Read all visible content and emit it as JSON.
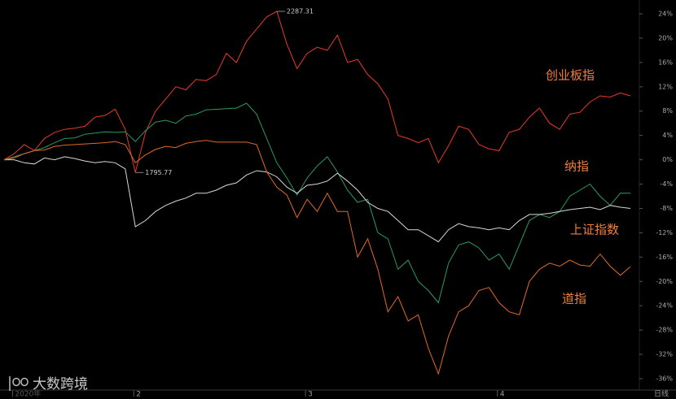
{
  "chart_data": {
    "type": "line",
    "x": [
      0,
      1,
      2,
      3,
      4,
      5,
      6,
      7,
      8,
      9,
      10,
      11,
      12,
      13,
      14,
      15,
      16,
      17,
      18,
      19,
      20,
      21,
      22,
      23,
      24,
      25,
      26,
      27,
      28,
      29,
      30,
      31,
      32,
      33,
      34,
      35,
      36,
      37,
      38,
      39,
      40,
      41,
      42,
      43,
      44,
      45,
      46,
      47,
      48,
      49,
      50,
      51,
      52,
      53,
      54,
      55,
      56,
      57,
      58,
      59,
      60,
      61,
      62
    ],
    "xlim": [
      0,
      62
    ],
    "xticks": [
      {
        "value": 1,
        "label": "2020年"
      },
      {
        "value": 13,
        "label": "2"
      },
      {
        "value": 30,
        "label": "3"
      },
      {
        "value": 49,
        "label": "4"
      }
    ],
    "period_label": "日线",
    "ylim": [
      -36,
      24
    ],
    "yticks": [
      {
        "value": 24,
        "label": "24%"
      },
      {
        "value": 20,
        "label": "20%"
      },
      {
        "value": 16,
        "label": "16%"
      },
      {
        "value": 12,
        "label": "12%"
      },
      {
        "value": 8,
        "label": "8%"
      },
      {
        "value": 4,
        "label": "4%"
      },
      {
        "value": 0,
        "label": "0%"
      },
      {
        "value": -4,
        "label": "-4%"
      },
      {
        "value": -8,
        "label": "-8%"
      },
      {
        "value": -12,
        "label": "-12%"
      },
      {
        "value": -16,
        "label": "-16%"
      },
      {
        "value": -20,
        "label": "-20%"
      },
      {
        "value": -24,
        "label": "-24%"
      },
      {
        "value": -28,
        "label": "-28%"
      },
      {
        "value": -32,
        "label": "-32%"
      },
      {
        "value": -36,
        "label": "-36%"
      }
    ],
    "grid": false,
    "series": [
      {
        "name": "创业板指",
        "color": "#e8392c",
        "values": [
          0,
          1,
          2.5,
          1.5,
          3.5,
          4.5,
          5,
          5.2,
          5.5,
          7,
          7.3,
          8.3,
          5,
          -2.1,
          4.5,
          8,
          10,
          12,
          11.5,
          13.2,
          13,
          14,
          17.5,
          16,
          19.5,
          21.5,
          23.5,
          24.4,
          19,
          15,
          17.5,
          18.5,
          18,
          20.5,
          16,
          16.5,
          14,
          12.5,
          10,
          4,
          3.5,
          2.8,
          3.5,
          -0.5,
          2.3,
          5.5,
          5,
          2.5,
          1.8,
          1.5,
          4.5,
          5,
          7,
          8.5,
          6,
          5,
          7.5,
          7.8,
          9.5,
          10.5,
          10.3,
          11,
          10.5
        ]
      },
      {
        "name": "纳指",
        "color": "#2a9a5c",
        "values": [
          0,
          0.5,
          1,
          1.5,
          2,
          2.8,
          3.5,
          3.6,
          4.2,
          4.4,
          4.6,
          4.5,
          4.6,
          3,
          4.8,
          6.2,
          6.5,
          6,
          7.2,
          7.5,
          8.2,
          8.3,
          8.4,
          8.5,
          9.3,
          7.5,
          3.5,
          -0.5,
          -3,
          -5.8,
          -3,
          -1,
          0.5,
          -2,
          -5,
          -7,
          -6.5,
          -12,
          -13,
          -18,
          -16.5,
          -20,
          -21.5,
          -23.5,
          -17,
          -14,
          -13.5,
          -14.5,
          -16.5,
          -15.5,
          -18,
          -14,
          -10,
          -9,
          -9.5,
          -8.5,
          -6,
          -5,
          -4,
          -6,
          -7.5,
          -5.5,
          -5.5
        ]
      },
      {
        "name": "上证指数",
        "color": "#d8d8d8",
        "values": [
          0,
          0,
          -0.5,
          -0.7,
          0.3,
          0,
          0.5,
          0.2,
          -0.2,
          -0.5,
          -0.3,
          -0.5,
          -1.5,
          -11,
          -10,
          -8.5,
          -7.5,
          -6.8,
          -6.3,
          -5.5,
          -5.5,
          -5,
          -4.2,
          -3.8,
          -2.5,
          -1.8,
          -2,
          -2.8,
          -4.5,
          -5.5,
          -4.2,
          -4,
          -3.5,
          -2.2,
          -3.5,
          -5,
          -7,
          -8,
          -8.5,
          -10,
          -11.5,
          -11.5,
          -12.5,
          -13.5,
          -11.5,
          -10.5,
          -11,
          -11.2,
          -11.5,
          -11.2,
          -11.5,
          -10,
          -9,
          -9,
          -8.8,
          -8.5,
          -8.2,
          -8,
          -7.8,
          -8.2,
          -7.5,
          -7.8,
          -8
        ]
      },
      {
        "name": "道指",
        "color": "#e06a26",
        "values": [
          0,
          0.3,
          1,
          1.5,
          1.6,
          2.2,
          2.4,
          2.5,
          2.6,
          2.7,
          2.8,
          3,
          2.5,
          -0.5,
          0.8,
          1.7,
          2.2,
          2,
          2.7,
          3,
          3.2,
          2.9,
          2.9,
          2.9,
          2.9,
          2.5,
          -2,
          -4.5,
          -5.8,
          -9.5,
          -6.5,
          -8.5,
          -5.5,
          -8.5,
          -8.5,
          -16,
          -13,
          -18,
          -25,
          -22.5,
          -26.5,
          -25.5,
          -31,
          -35.2,
          -29,
          -25,
          -24,
          -21.5,
          -21,
          -23.5,
          -25,
          -25.5,
          -20,
          -18,
          -17,
          -17.5,
          -16.5,
          -17.3,
          -17.5,
          -15.5,
          -17.5,
          -19,
          -17.6
        ]
      }
    ],
    "annotations": [
      "2287.31",
      "1795.77"
    ],
    "watermark": "大数跨境"
  }
}
